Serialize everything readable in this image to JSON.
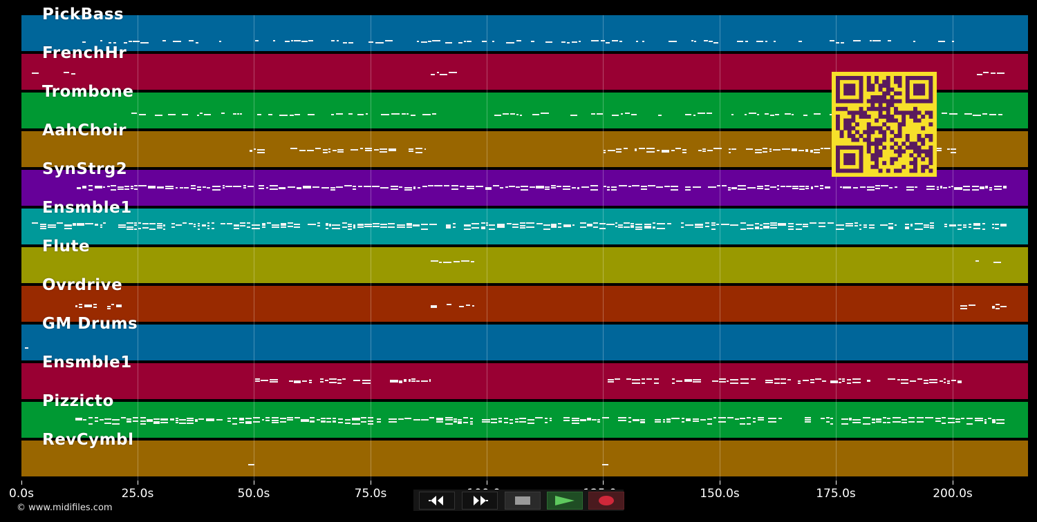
{
  "app": {
    "copyright": "© www.midifiles.com"
  },
  "timeline": {
    "tick_labels": [
      "0.0s",
      "25.0s",
      "50.0s",
      "75.0s",
      "100.0s",
      "125.0s",
      "150.0s",
      "175.0s",
      "200.0s"
    ]
  },
  "tracks": [
    {
      "name": "PickBass",
      "color": "#00669a"
    },
    {
      "name": "FrenchHr",
      "color": "#990033"
    },
    {
      "name": "Trombone",
      "color": "#009933"
    },
    {
      "name": "AahChoir",
      "color": "#996600"
    },
    {
      "name": "SynStrg2",
      "color": "#660099"
    },
    {
      "name": "Ensmble1",
      "color": "#009999"
    },
    {
      "name": "Flute",
      "color": "#999900"
    },
    {
      "name": "Ovrdrive",
      "color": "#992a00"
    },
    {
      "name": "GM Drums",
      "color": "#00669a"
    },
    {
      "name": "Ensmble1",
      "color": "#990033"
    },
    {
      "name": "Pizzicto",
      "color": "#009933"
    },
    {
      "name": "RevCymbl",
      "color": "#996600"
    }
  ],
  "transport": {
    "rewind": "rewind-icon",
    "fast_forward": "fast-forward-icon",
    "stop": "stop-icon",
    "play": "play-icon",
    "record": "record-icon"
  },
  "colors": {
    "background": "#000000",
    "qr_fg": "#5a1a5e",
    "qr_bg": "#f7e02a",
    "play": "#5ec95e",
    "record": "#d0283a"
  }
}
